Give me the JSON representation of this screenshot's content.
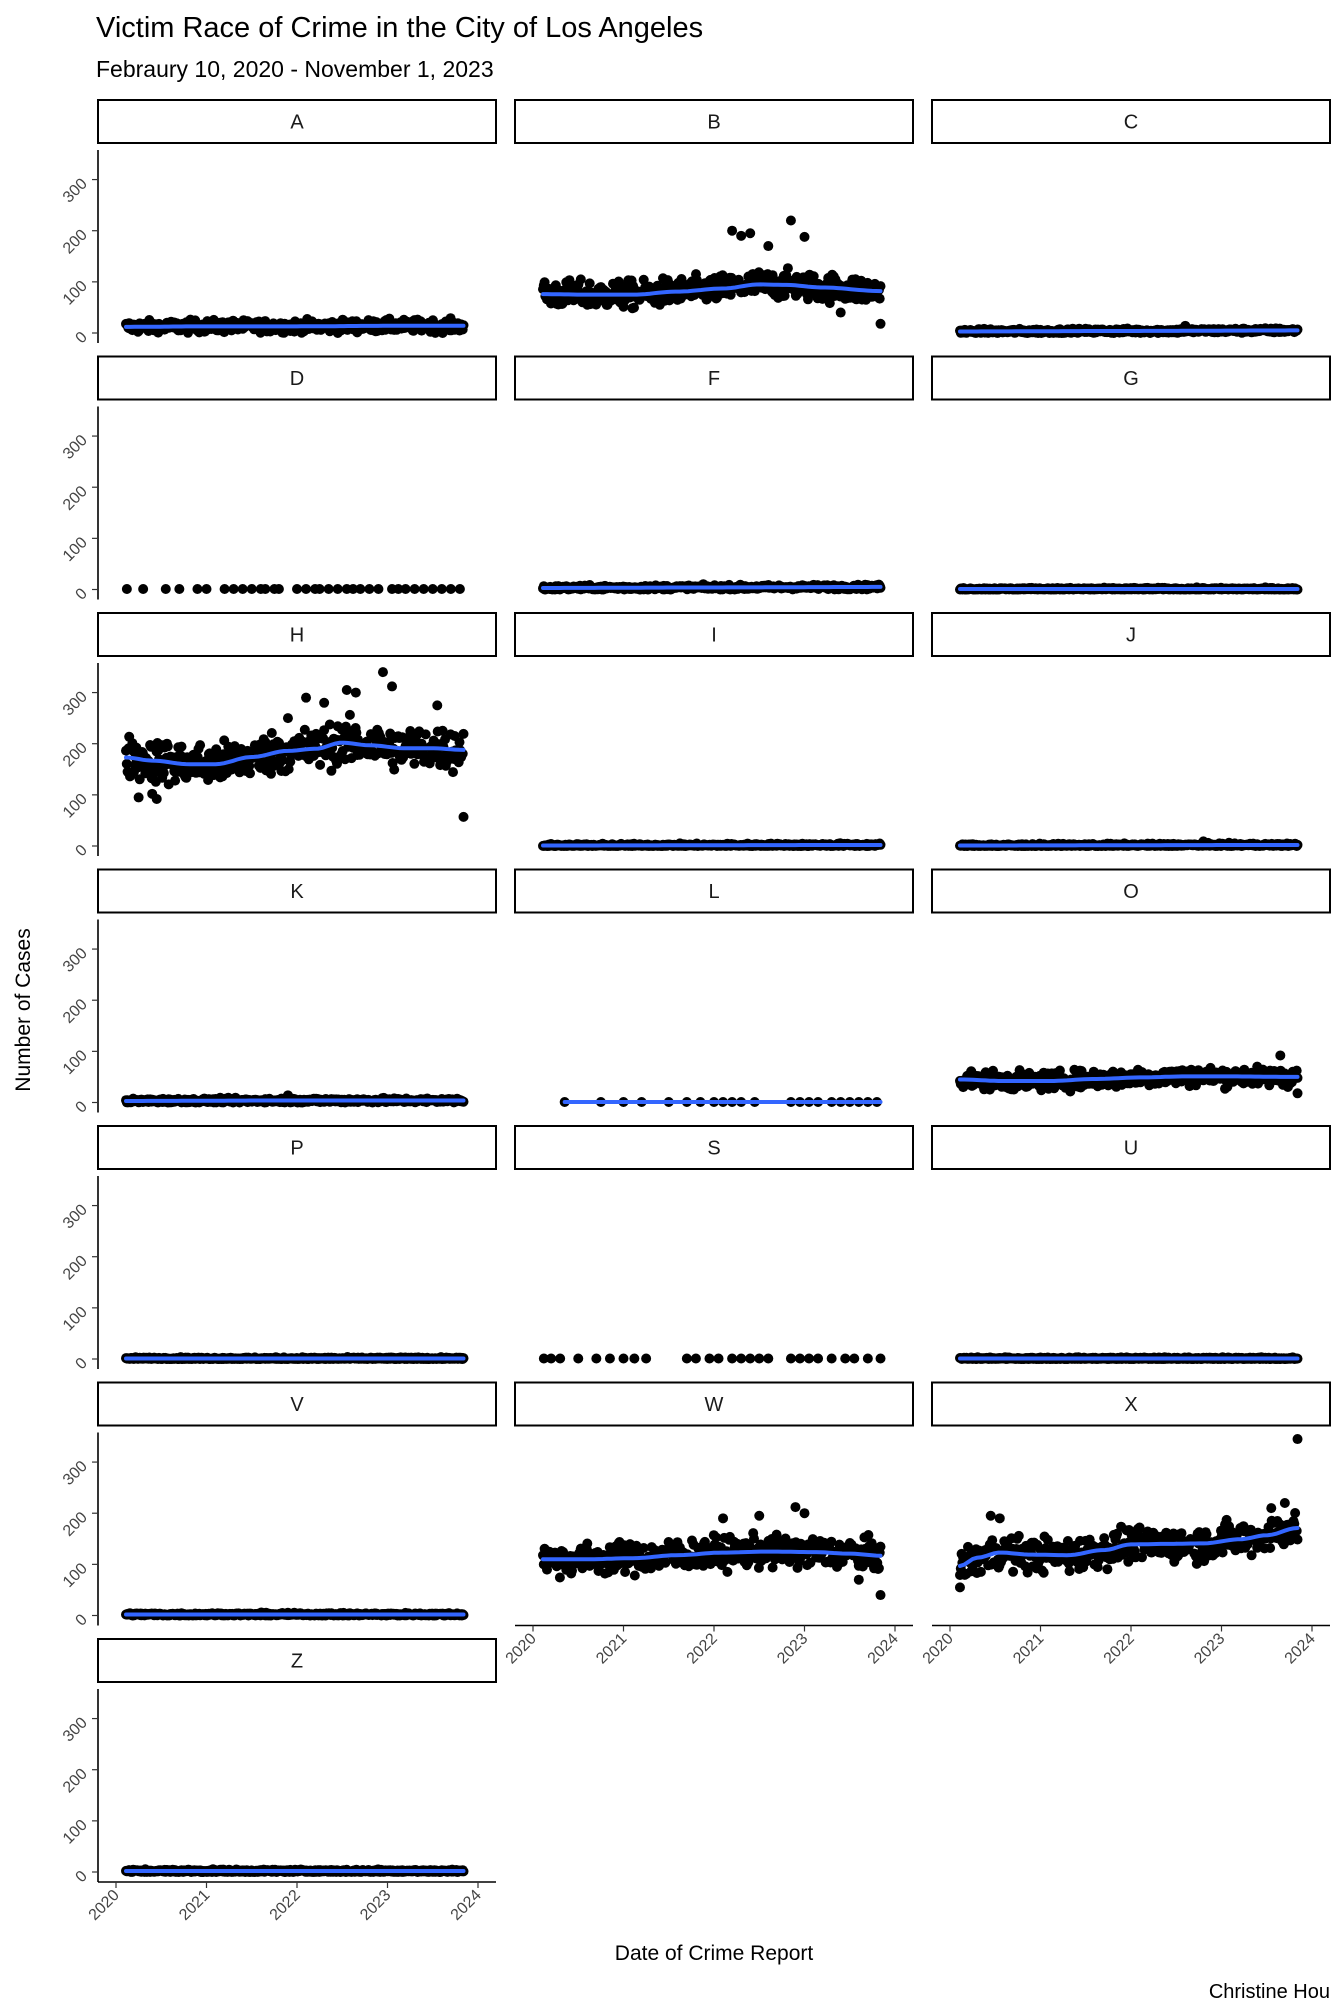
{
  "chart_data": {
    "type": "scatter",
    "title": "Victim Race of Crime in the City of Los Angeles",
    "subtitle": "Febraury 10, 2020 - November 1, 2023",
    "xlabel": "Date of Crime Report",
    "ylabel": "Number of Cases",
    "caption": "Christine Hou",
    "xlim": [
      2020,
      2024
    ],
    "ylim": [
      0,
      350
    ],
    "x_ticks": [
      2020,
      2021,
      2022,
      2023,
      2024
    ],
    "y_ticks": [
      0,
      100,
      200,
      300
    ],
    "point_color": "#000000",
    "smooth_color": "#3366ff",
    "grid": false,
    "panels": [
      {
        "label": "A",
        "x_range": [
          2020.11,
          2023.84
        ],
        "smooth_x": [
          2020.11,
          2021.0,
          2022.0,
          2023.0,
          2023.84
        ],
        "smooth_y": [
          12,
          13,
          13,
          14,
          14
        ],
        "spread": 8,
        "outliers": []
      },
      {
        "label": "B",
        "x_range": [
          2020.11,
          2023.84
        ],
        "smooth_x": [
          2020.11,
          2020.6,
          2021.1,
          2021.6,
          2022.1,
          2022.5,
          2022.8,
          2023.2,
          2023.84
        ],
        "smooth_y": [
          76,
          75,
          75,
          81,
          87,
          95,
          94,
          89,
          82
        ],
        "spread": 18,
        "outliers": [
          [
            2022.2,
            200
          ],
          [
            2022.3,
            190
          ],
          [
            2022.4,
            195
          ],
          [
            2022.85,
            220
          ],
          [
            2023.0,
            188
          ],
          [
            2022.6,
            170
          ],
          [
            2023.84,
            18
          ],
          [
            2023.4,
            40
          ]
        ]
      },
      {
        "label": "C",
        "x_range": [
          2020.11,
          2023.84
        ],
        "smooth_x": [
          2020.11,
          2022.0,
          2023.84
        ],
        "smooth_y": [
          3,
          4,
          5
        ],
        "spread": 3,
        "outliers": [
          [
            2022.6,
            14
          ]
        ]
      },
      {
        "label": "D",
        "x_range": [
          2020.11,
          2023.84
        ],
        "discrete_x": [
          2020.12,
          2020.3,
          2020.55,
          2020.7,
          2020.9,
          2021.0,
          2021.2,
          2021.3,
          2021.4,
          2021.5,
          2021.6,
          2021.65,
          2021.75,
          2021.8,
          2022.0,
          2022.1,
          2022.2,
          2022.25,
          2022.35,
          2022.45,
          2022.55,
          2022.62,
          2022.7,
          2022.8,
          2022.9,
          2023.05,
          2023.12,
          2023.2,
          2023.3,
          2023.4,
          2023.5,
          2023.6,
          2023.7,
          2023.8
        ],
        "outliers": []
      },
      {
        "label": "F",
        "x_range": [
          2020.11,
          2023.84
        ],
        "smooth_x": [
          2020.11,
          2022.0,
          2023.84
        ],
        "smooth_y": [
          3,
          4,
          5
        ],
        "spread": 3,
        "outliers": []
      },
      {
        "label": "G",
        "x_range": [
          2020.11,
          2023.84
        ],
        "smooth_x": [
          2020.11,
          2023.84
        ],
        "smooth_y": [
          1,
          1
        ],
        "spread": 1.5,
        "outliers": []
      },
      {
        "label": "H",
        "x_range": [
          2020.11,
          2023.84
        ],
        "smooth_x": [
          2020.11,
          2020.4,
          2020.8,
          2021.1,
          2021.5,
          2021.9,
          2022.2,
          2022.5,
          2022.8,
          2023.2,
          2023.5,
          2023.84
        ],
        "smooth_y": [
          173,
          167,
          160,
          160,
          174,
          186,
          190,
          202,
          197,
          191,
          191,
          188
        ],
        "spread": 28,
        "outliers": [
          [
            2020.25,
            95
          ],
          [
            2020.4,
            102
          ],
          [
            2020.45,
            92
          ],
          [
            2022.55,
            305
          ],
          [
            2022.65,
            300
          ],
          [
            2022.95,
            340
          ],
          [
            2023.05,
            312
          ],
          [
            2023.55,
            275
          ],
          [
            2023.84,
            57
          ],
          [
            2021.9,
            250
          ],
          [
            2022.1,
            290
          ],
          [
            2022.3,
            280
          ]
        ]
      },
      {
        "label": "I",
        "x_range": [
          2020.11,
          2023.84
        ],
        "smooth_x": [
          2020.11,
          2023.84
        ],
        "smooth_y": [
          1,
          2
        ],
        "spread": 2,
        "outliers": []
      },
      {
        "label": "J",
        "x_range": [
          2020.11,
          2023.84
        ],
        "smooth_x": [
          2020.11,
          2023.84
        ],
        "smooth_y": [
          1,
          2
        ],
        "spread": 2,
        "outliers": [
          [
            2022.8,
            9
          ]
        ]
      },
      {
        "label": "K",
        "x_range": [
          2020.11,
          2023.84
        ],
        "smooth_x": [
          2020.11,
          2022.0,
          2023.84
        ],
        "smooth_y": [
          3,
          4,
          4
        ],
        "spread": 3,
        "outliers": [
          [
            2021.9,
            14
          ]
        ]
      },
      {
        "label": "L",
        "x_range": [
          2020.35,
          2023.84
        ],
        "discrete_x": [
          2020.35,
          2020.75,
          2021.0,
          2021.2,
          2021.5,
          2021.7,
          2021.85,
          2022.0,
          2022.1,
          2022.2,
          2022.3,
          2022.45,
          2022.85,
          2022.95,
          2023.05,
          2023.15,
          2023.3,
          2023.4,
          2023.5,
          2023.6,
          2023.7,
          2023.8
        ],
        "smooth_x": [
          2020.35,
          2023.84
        ],
        "smooth_y": [
          1,
          1
        ],
        "outliers": []
      },
      {
        "label": "O",
        "x_range": [
          2020.11,
          2023.84
        ],
        "smooth_x": [
          2020.11,
          2020.6,
          2021.1,
          2021.6,
          2022.1,
          2022.6,
          2023.1,
          2023.84
        ],
        "smooth_y": [
          45,
          42,
          42,
          46,
          49,
          51,
          51,
          50
        ],
        "spread": 12,
        "outliers": [
          [
            2023.65,
            92
          ],
          [
            2023.84,
            18
          ]
        ]
      },
      {
        "label": "P",
        "x_range": [
          2020.11,
          2023.84
        ],
        "smooth_x": [
          2020.11,
          2023.84
        ],
        "smooth_y": [
          1,
          1
        ],
        "spread": 1.5,
        "outliers": []
      },
      {
        "label": "S",
        "x_range": [
          2020.11,
          2023.84
        ],
        "discrete_x": [
          2020.12,
          2020.2,
          2020.3,
          2020.5,
          2020.7,
          2020.85,
          2021.0,
          2021.12,
          2021.25,
          2021.7,
          2021.8,
          2021.95,
          2022.05,
          2022.2,
          2022.3,
          2022.4,
          2022.5,
          2022.6,
          2022.85,
          2022.95,
          2023.05,
          2023.15,
          2023.3,
          2023.45,
          2023.55,
          2023.7,
          2023.84
        ],
        "outliers": []
      },
      {
        "label": "U",
        "x_range": [
          2020.11,
          2023.84
        ],
        "smooth_x": [
          2020.11,
          2023.84
        ],
        "smooth_y": [
          1,
          1
        ],
        "spread": 1.5,
        "outliers": []
      },
      {
        "label": "V",
        "x_range": [
          2020.11,
          2023.84
        ],
        "smooth_x": [
          2020.11,
          2023.84
        ],
        "smooth_y": [
          2,
          2
        ],
        "spread": 2,
        "outliers": []
      },
      {
        "label": "W",
        "x_range": [
          2020.11,
          2023.84
        ],
        "smooth_x": [
          2020.11,
          2020.6,
          2021.1,
          2021.6,
          2022.1,
          2022.6,
          2023.1,
          2023.5,
          2023.84
        ],
        "smooth_y": [
          110,
          110,
          112,
          118,
          123,
          125,
          124,
          121,
          117
        ],
        "spread": 20,
        "outliers": [
          [
            2022.1,
            190
          ],
          [
            2022.5,
            195
          ],
          [
            2022.9,
            212
          ],
          [
            2023.0,
            200
          ],
          [
            2023.84,
            40
          ],
          [
            2023.6,
            70
          ]
        ]
      },
      {
        "label": "X",
        "x_range": [
          2020.11,
          2023.84
        ],
        "smooth_x": [
          2020.11,
          2020.3,
          2020.55,
          2020.9,
          2021.3,
          2021.7,
          2022.0,
          2022.4,
          2022.8,
          2023.2,
          2023.5,
          2023.84
        ],
        "smooth_y": [
          97,
          113,
          123,
          119,
          118,
          128,
          139,
          140,
          141,
          149,
          157,
          171
        ],
        "spread": 22,
        "outliers": [
          [
            2020.45,
            195
          ],
          [
            2020.55,
            190
          ],
          [
            2023.84,
            345
          ],
          [
            2023.7,
            220
          ],
          [
            2023.55,
            210
          ],
          [
            2020.11,
            55
          ]
        ]
      },
      {
        "label": "Z",
        "x_range": [
          2020.11,
          2023.84
        ],
        "smooth_x": [
          2020.11,
          2023.84
        ],
        "smooth_y": [
          2,
          2
        ],
        "spread": 2,
        "outliers": []
      }
    ]
  }
}
